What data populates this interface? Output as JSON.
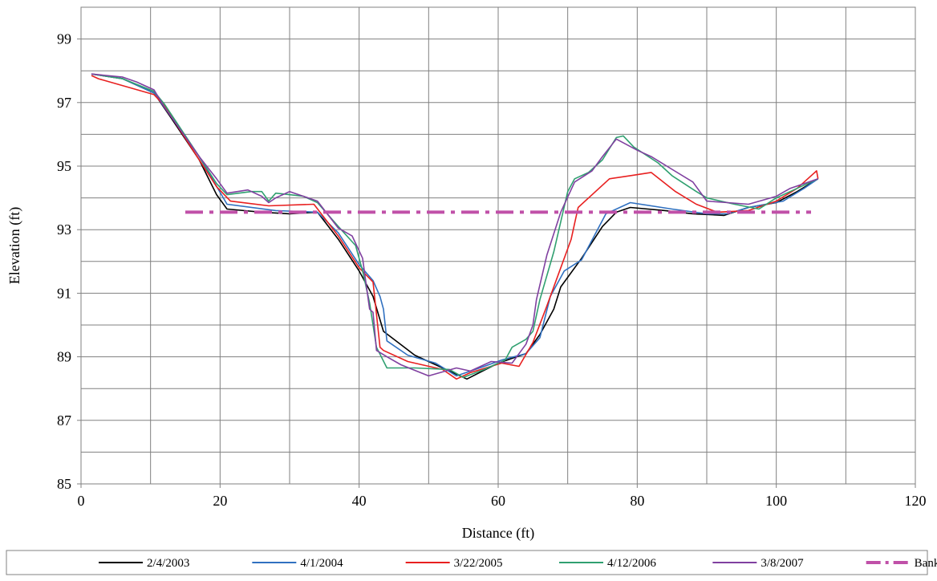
{
  "chart_data": {
    "type": "line",
    "title": "",
    "xlabel": "Distance (ft)",
    "ylabel": "Elevation (ft)",
    "xlim": [
      0,
      120
    ],
    "ylim": [
      85,
      100
    ],
    "x_ticks": [
      0,
      20,
      40,
      60,
      80,
      100,
      120
    ],
    "y_ticks": [
      85,
      87,
      89,
      91,
      93,
      95,
      97,
      99
    ],
    "x_grid_step": 10,
    "y_grid_step": 1,
    "grid": true,
    "legend_position": "bottom",
    "series": [
      {
        "name": "2/4/2003",
        "color": "#000000",
        "style": "solid",
        "points": [
          [
            1.5,
            97.9
          ],
          [
            6,
            97.75
          ],
          [
            10.5,
            97.3
          ],
          [
            13,
            96.5
          ],
          [
            17,
            95.2
          ],
          [
            19.5,
            94.1
          ],
          [
            21,
            93.65
          ],
          [
            26,
            93.55
          ],
          [
            30,
            93.5
          ],
          [
            34,
            93.55
          ],
          [
            37,
            92.7
          ],
          [
            40,
            91.7
          ],
          [
            42,
            90.9
          ],
          [
            43.5,
            89.8
          ],
          [
            48,
            89.05
          ],
          [
            52,
            88.65
          ],
          [
            55.5,
            88.3
          ],
          [
            60,
            88.8
          ],
          [
            64,
            89.1
          ],
          [
            66,
            89.7
          ],
          [
            68,
            90.5
          ],
          [
            69,
            91.2
          ],
          [
            72,
            92.1
          ],
          [
            75,
            93.1
          ],
          [
            77,
            93.55
          ],
          [
            79,
            93.7
          ],
          [
            84,
            93.6
          ],
          [
            88,
            93.5
          ],
          [
            92.5,
            93.45
          ],
          [
            96,
            93.7
          ],
          [
            100,
            93.85
          ],
          [
            103,
            94.2
          ],
          [
            106,
            94.6
          ]
        ]
      },
      {
        "name": "4/1/2004",
        "color": "#3070c0",
        "style": "solid",
        "points": [
          [
            1.5,
            97.9
          ],
          [
            6,
            97.75
          ],
          [
            10.5,
            97.3
          ],
          [
            12.5,
            96.7
          ],
          [
            17,
            95.3
          ],
          [
            21,
            93.8
          ],
          [
            28,
            93.6
          ],
          [
            34,
            93.55
          ],
          [
            37,
            92.9
          ],
          [
            40,
            91.9
          ],
          [
            42,
            91.4
          ],
          [
            43,
            90.9
          ],
          [
            43.5,
            90.5
          ],
          [
            44,
            89.5
          ],
          [
            47,
            89.05
          ],
          [
            51,
            88.8
          ],
          [
            54,
            88.4
          ],
          [
            58,
            88.7
          ],
          [
            60.5,
            88.9
          ],
          [
            64,
            89.1
          ],
          [
            66,
            89.6
          ],
          [
            67.5,
            90.9
          ],
          [
            69.5,
            91.7
          ],
          [
            72,
            92.05
          ],
          [
            75.5,
            93.5
          ],
          [
            79,
            93.85
          ],
          [
            85,
            93.65
          ],
          [
            90,
            93.5
          ],
          [
            93,
            93.5
          ],
          [
            96,
            93.7
          ],
          [
            101,
            93.9
          ],
          [
            104,
            94.3
          ],
          [
            106,
            94.6
          ]
        ]
      },
      {
        "name": "3/22/2005",
        "color": "#e82020",
        "style": "solid",
        "points": [
          [
            1.5,
            97.85
          ],
          [
            2.5,
            97.75
          ],
          [
            10.5,
            97.25
          ],
          [
            12,
            96.9
          ],
          [
            17,
            95.2
          ],
          [
            19.5,
            94.35
          ],
          [
            21.5,
            93.9
          ],
          [
            27,
            93.75
          ],
          [
            33.5,
            93.8
          ],
          [
            37,
            92.8
          ],
          [
            40,
            91.8
          ],
          [
            42,
            91.35
          ],
          [
            43,
            89.3
          ],
          [
            43.5,
            89.2
          ],
          [
            47,
            88.85
          ],
          [
            52,
            88.6
          ],
          [
            54,
            88.3
          ],
          [
            56,
            88.5
          ],
          [
            60.5,
            88.8
          ],
          [
            63,
            88.7
          ],
          [
            65,
            89.45
          ],
          [
            67,
            90.6
          ],
          [
            69,
            91.8
          ],
          [
            70.5,
            92.7
          ],
          [
            71,
            93.2
          ],
          [
            71.5,
            93.7
          ],
          [
            76,
            94.6
          ],
          [
            79,
            94.7
          ],
          [
            82,
            94.8
          ],
          [
            85.5,
            94.2
          ],
          [
            88.5,
            93.8
          ],
          [
            91.5,
            93.55
          ],
          [
            96,
            93.6
          ],
          [
            100,
            93.9
          ],
          [
            103,
            94.3
          ],
          [
            105.8,
            94.85
          ],
          [
            106,
            94.6
          ]
        ]
      },
      {
        "name": "4/12/2006",
        "color": "#30a070",
        "style": "solid",
        "points": [
          [
            1.5,
            97.9
          ],
          [
            6,
            97.75
          ],
          [
            10.5,
            97.35
          ],
          [
            12,
            96.95
          ],
          [
            17,
            95.3
          ],
          [
            19.5,
            94.45
          ],
          [
            21,
            94.1
          ],
          [
            24.5,
            94.2
          ],
          [
            26,
            94.2
          ],
          [
            27,
            93.9
          ],
          [
            28,
            94.15
          ],
          [
            30,
            94.1
          ],
          [
            32,
            94.05
          ],
          [
            34,
            93.85
          ],
          [
            37,
            93.1
          ],
          [
            39.5,
            92.5
          ],
          [
            40.5,
            91.7
          ],
          [
            41.5,
            90.7
          ],
          [
            42.5,
            89.3
          ],
          [
            44,
            88.65
          ],
          [
            48,
            88.65
          ],
          [
            53,
            88.6
          ],
          [
            55,
            88.35
          ],
          [
            58,
            88.6
          ],
          [
            61,
            88.9
          ],
          [
            62,
            89.3
          ],
          [
            64,
            89.55
          ],
          [
            65,
            89.8
          ],
          [
            66,
            90.8
          ],
          [
            68,
            92.3
          ],
          [
            70,
            94.2
          ],
          [
            71,
            94.6
          ],
          [
            73,
            94.8
          ],
          [
            75,
            95.2
          ],
          [
            77,
            95.9
          ],
          [
            78,
            95.95
          ],
          [
            79.5,
            95.6
          ],
          [
            83,
            95.1
          ],
          [
            85,
            94.7
          ],
          [
            88.5,
            94.2
          ],
          [
            90,
            94.0
          ],
          [
            94,
            93.8
          ],
          [
            97.5,
            93.65
          ],
          [
            100,
            94.0
          ],
          [
            103,
            94.3
          ],
          [
            106,
            94.6
          ]
        ]
      },
      {
        "name": "3/8/2007",
        "color": "#8040a0",
        "style": "solid",
        "points": [
          [
            1.5,
            97.9
          ],
          [
            6,
            97.8
          ],
          [
            8,
            97.65
          ],
          [
            10.5,
            97.4
          ],
          [
            12,
            96.85
          ],
          [
            17,
            95.3
          ],
          [
            19.5,
            94.6
          ],
          [
            21,
            94.15
          ],
          [
            24,
            94.25
          ],
          [
            26,
            94.05
          ],
          [
            27,
            93.85
          ],
          [
            28,
            94.0
          ],
          [
            30,
            94.2
          ],
          [
            32,
            94.05
          ],
          [
            34,
            93.9
          ],
          [
            37,
            93.05
          ],
          [
            39,
            92.8
          ],
          [
            40.5,
            92.1
          ],
          [
            41,
            91.3
          ],
          [
            41.5,
            90.5
          ],
          [
            42,
            90.4
          ],
          [
            42.5,
            89.2
          ],
          [
            44,
            89.0
          ],
          [
            46,
            88.75
          ],
          [
            50,
            88.4
          ],
          [
            54,
            88.65
          ],
          [
            56,
            88.55
          ],
          [
            59,
            88.85
          ],
          [
            62,
            88.8
          ],
          [
            64,
            89.4
          ],
          [
            65,
            90.0
          ],
          [
            65.5,
            90.8
          ],
          [
            67,
            92.2
          ],
          [
            69,
            93.55
          ],
          [
            71,
            94.5
          ],
          [
            73.5,
            94.85
          ],
          [
            75,
            95.3
          ],
          [
            77,
            95.85
          ],
          [
            80,
            95.5
          ],
          [
            82,
            95.3
          ],
          [
            85,
            94.9
          ],
          [
            88,
            94.5
          ],
          [
            90,
            93.9
          ],
          [
            93,
            93.85
          ],
          [
            96,
            93.8
          ],
          [
            100,
            94.05
          ],
          [
            102,
            94.3
          ],
          [
            106,
            94.6
          ]
        ]
      },
      {
        "name": "Bankfull",
        "color": "#c050a8",
        "style": "dashdot",
        "points": [
          [
            15,
            93.55
          ],
          [
            105,
            93.55
          ]
        ]
      }
    ]
  }
}
